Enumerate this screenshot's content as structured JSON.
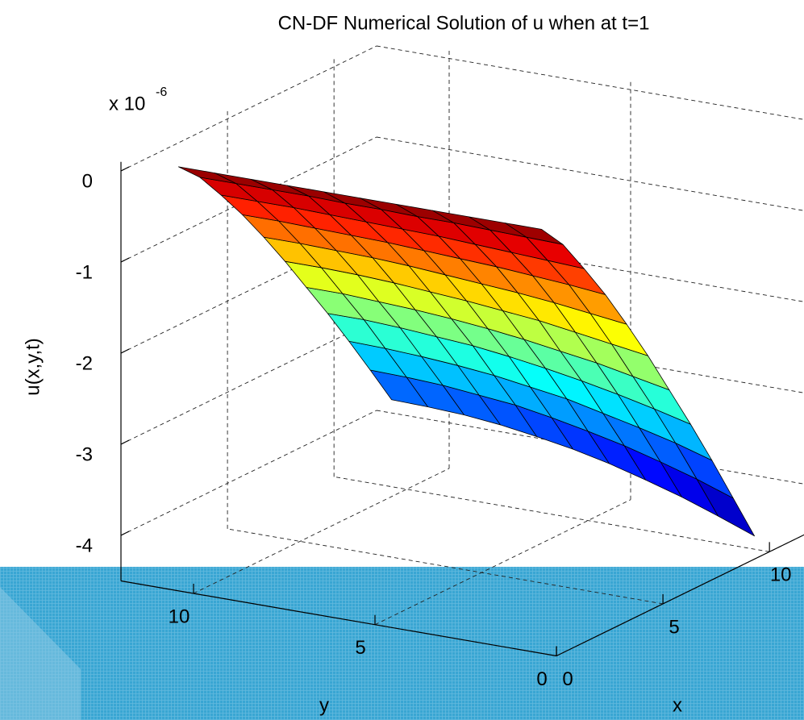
{
  "chart_data": {
    "type": "surface",
    "title": "CN-DF Numerical Solution of u when at t=1",
    "xlabel": "x",
    "ylabel": "y",
    "zlabel": "u(x,y,t)",
    "z_multiplier": {
      "base": "x 10",
      "exponent": "-6"
    },
    "x": [
      1,
      2,
      3,
      4,
      5,
      6,
      7,
      8,
      9,
      10,
      11
    ],
    "y": [
      1,
      2,
      3,
      4,
      5,
      6,
      7,
      8,
      9,
      10,
      11
    ],
    "z": [
      [
        0,
        -0.28,
        -0.66,
        -1.06,
        -1.5,
        -1.96,
        -2.45,
        -2.94,
        -3.45,
        -3.98,
        -4.51
      ],
      [
        0,
        -0.27,
        -0.64,
        -1.02,
        -1.45,
        -1.9,
        -2.37,
        -2.84,
        -3.33,
        -3.84,
        -4.36
      ],
      [
        0,
        -0.26,
        -0.62,
        -0.99,
        -1.4,
        -1.84,
        -2.29,
        -2.75,
        -3.23,
        -3.72,
        -4.22
      ],
      [
        0,
        -0.25,
        -0.6,
        -0.96,
        -1.36,
        -1.78,
        -2.23,
        -2.67,
        -3.14,
        -3.61,
        -4.1
      ],
      [
        0,
        -0.25,
        -0.58,
        -0.94,
        -1.33,
        -1.74,
        -2.17,
        -2.6,
        -3.05,
        -3.52,
        -3.99
      ],
      [
        0,
        -0.24,
        -0.57,
        -0.92,
        -1.3,
        -1.7,
        -2.12,
        -2.54,
        -2.99,
        -3.44,
        -3.9
      ],
      [
        0,
        -0.24,
        -0.56,
        -0.9,
        -1.27,
        -1.67,
        -2.08,
        -2.49,
        -2.93,
        -3.37,
        -3.83
      ],
      [
        0,
        -0.23,
        -0.55,
        -0.89,
        -1.25,
        -1.64,
        -2.05,
        -2.46,
        -2.89,
        -3.33,
        -3.77
      ],
      [
        0,
        -0.23,
        -0.54,
        -0.88,
        -1.24,
        -1.62,
        -2.03,
        -2.43,
        -2.86,
        -3.29,
        -3.73
      ],
      [
        0,
        -0.23,
        -0.54,
        -0.87,
        -1.23,
        -1.61,
        -2.01,
        -2.41,
        -2.84,
        -3.27,
        -3.71
      ],
      [
        0,
        -0.23,
        -0.54,
        -0.87,
        -1.23,
        -1.61,
        -2.01,
        -2.41,
        -2.83,
        -3.26,
        -3.7
      ]
    ],
    "xlim": [
      0,
      12
    ],
    "ylim": [
      0,
      12
    ],
    "zlim": [
      -4.5,
      0.1
    ],
    "xticks": [
      0,
      5,
      10
    ],
    "yticks": [
      0,
      5,
      10
    ],
    "zticks": [
      -4,
      -3,
      -2,
      -1,
      0
    ],
    "grid": true,
    "colormap": "jet",
    "edgecolor": "#000000"
  }
}
